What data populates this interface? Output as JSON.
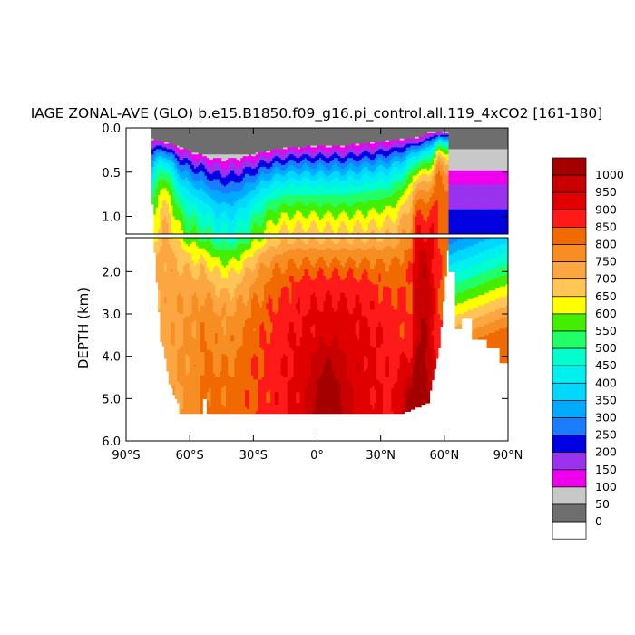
{
  "chart_data": {
    "type": "heatmap",
    "title": "IAGE ZONAL-AVE (GLO) b.e15.B1850.f09_g16.pi_control.all.119_4xCO2 [161-180]",
    "xlabel": "",
    "ylabel": "DEPTH (km)",
    "x_ticks": [
      "90°S",
      "60°S",
      "30°S",
      "0°",
      "30°N",
      "60°N",
      "90°N"
    ],
    "x_tick_values": [
      -90,
      -60,
      -30,
      0,
      30,
      60,
      90
    ],
    "xlim": [
      -90,
      90
    ],
    "upper_panel": {
      "ylim": [
        0,
        1.2
      ],
      "y_ticks": [
        "0.0",
        "0.5",
        "1.0"
      ],
      "y_tick_values": [
        0,
        0.5,
        1.0
      ]
    },
    "lower_panel": {
      "ylim": [
        1.2,
        6.0
      ],
      "y_ticks": [
        "2.0",
        "3.0",
        "4.0",
        "5.0",
        "6.0"
      ],
      "y_tick_values": [
        2,
        3,
        4,
        5,
        6
      ]
    },
    "colorbar": {
      "labels": [
        "1000",
        "950",
        "900",
        "850",
        "800",
        "750",
        "700",
        "650",
        "600",
        "550",
        "500",
        "450",
        "400",
        "350",
        "300",
        "250",
        "200",
        "150",
        "100",
        "50",
        "0"
      ],
      "colors": [
        "#a50000",
        "#c80000",
        "#e00000",
        "#ff1a1a",
        "#f06a00",
        "#f78e24",
        "#fca642",
        "#ffc555",
        "#ffff00",
        "#44ee00",
        "#22ff66",
        "#00ffcc",
        "#00f0f0",
        "#00d8ff",
        "#00aaff",
        "#1a7cff",
        "#0000e0",
        "#9933ee",
        "#ee00ee",
        "#c8c8c8",
        "#6e6e6e",
        "#ffffff"
      ]
    }
  }
}
